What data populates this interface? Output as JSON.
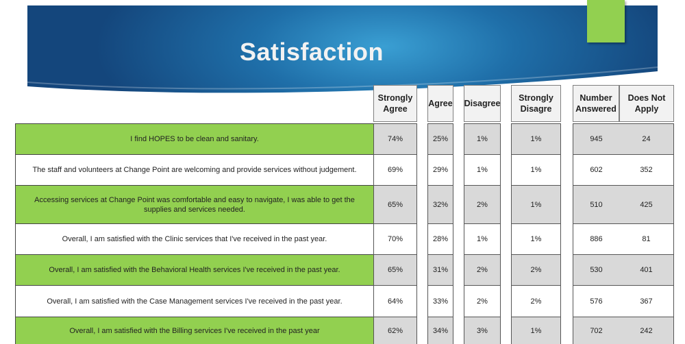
{
  "slide": {
    "title": "Satisfaction"
  },
  "table": {
    "headers": {
      "strongly_agree": "Strongly Agree",
      "agree": "Agree",
      "disagree": "Disagree",
      "strongly_disagree": "Strongly Disagre",
      "number_answered": "Number Answered",
      "does_not_apply": "Does Not Apply"
    },
    "rows": [
      {
        "statement": "I find HOPES to be clean and sanitary.",
        "strongly_agree": "74%",
        "agree": "25%",
        "disagree": "1%",
        "strongly_disagree": "1%",
        "number_answered": "945",
        "does_not_apply": "24"
      },
      {
        "statement": "The staff and volunteers at Change Point are welcoming and provide services without judgement.",
        "strongly_agree": "69%",
        "agree": "29%",
        "disagree": "1%",
        "strongly_disagree": "1%",
        "number_answered": "602",
        "does_not_apply": "352"
      },
      {
        "statement": "Accessing services at Change Point was comfortable and easy to navigate, I was able to get the supplies and services needed.",
        "strongly_agree": "65%",
        "agree": "32%",
        "disagree": "2%",
        "strongly_disagree": "1%",
        "number_answered": "510",
        "does_not_apply": "425"
      },
      {
        "statement": "Overall, I am satisfied with the Clinic services that I've received in the past year.",
        "strongly_agree": "70%",
        "agree": "28%",
        "disagree": "1%",
        "strongly_disagree": "1%",
        "number_answered": "886",
        "does_not_apply": "81"
      },
      {
        "statement": "Overall, I am satisfied with the Behavioral Health services I've received in the past year.",
        "strongly_agree": "65%",
        "agree": "31%",
        "disagree": "2%",
        "strongly_disagree": "2%",
        "number_answered": "530",
        "does_not_apply": "401"
      },
      {
        "statement": "Overall, I am satisfied with the Case Management services I've received in the past year.",
        "strongly_agree": "64%",
        "agree": "33%",
        "disagree": "2%",
        "strongly_disagree": "2%",
        "number_answered": "576",
        "does_not_apply": "367"
      },
      {
        "statement": "Overall, I am satisfied with the Billing services I've received in the past year",
        "strongly_agree": "62%",
        "agree": "34%",
        "disagree": "3%",
        "strongly_disagree": "1%",
        "number_answered": "702",
        "does_not_apply": "242"
      }
    ]
  },
  "colors": {
    "row_green": "#92d050",
    "cell_shade": "#d9d9d9",
    "banner_blue": "#1f6fa9"
  }
}
